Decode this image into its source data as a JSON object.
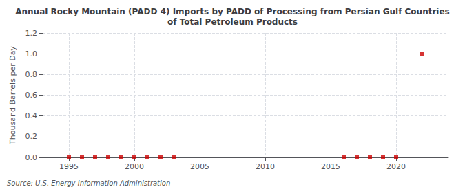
{
  "chart_data": {
    "type": "scatter",
    "title": "Annual Rocky Mountain (PADD 4) Imports by PADD of Processing from Persian Gulf Countries\nof Total Petroleum Products",
    "ylabel": "Thousand Barrels per Day",
    "annotations": [
      "Source: U.S. Energy Information Administration"
    ],
    "x": [
      1995,
      1996,
      1997,
      1998,
      1999,
      2000,
      2001,
      2002,
      2003,
      2016,
      2017,
      2018,
      2019,
      2020,
      2022
    ],
    "values": [
      0.0,
      0.0,
      0.0,
      0.0,
      0.0,
      0.0,
      0.0,
      0.0,
      0.0,
      0.0,
      0.0,
      0.0,
      0.0,
      0.0,
      1.0
    ],
    "color": "#cc0000",
    "marker": "square",
    "xlim": [
      1993,
      2024
    ],
    "xticks": [
      1995,
      2000,
      2005,
      2010,
      2015,
      2020
    ],
    "ylim": [
      0.0,
      1.2
    ],
    "yticks": [
      {
        "value": 0.0,
        "label": "0.0"
      },
      0.2,
      0.4,
      0.6,
      0.8,
      {
        "value": 1.0,
        "label": "1.0"
      },
      1.2
    ],
    "grid": true
  }
}
